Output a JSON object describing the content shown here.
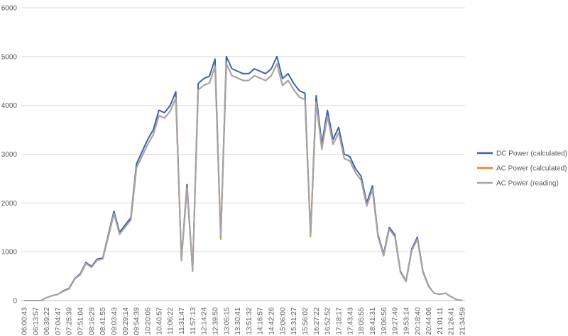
{
  "chart_data": {
    "type": "line",
    "categories": [
      "06:00:43",
      null,
      "06:13:57",
      null,
      "06:39:22",
      null,
      "07:04:47",
      null,
      "07:25:39",
      null,
      "07:51:04",
      null,
      "08:16:29",
      null,
      "08:41:55",
      null,
      "09:03:43",
      null,
      "09:29:14",
      null,
      "09:54:39",
      null,
      "10:20:05",
      null,
      "10:40:57",
      null,
      "11:06:22",
      null,
      "11:31:47",
      null,
      "11:57:13",
      null,
      "12:14:24",
      null,
      "12:39:50",
      null,
      "13:05:15",
      null,
      "13:30:41",
      null,
      "13:51:32",
      null,
      "14:16:57",
      null,
      "14:42:26",
      null,
      "15:06:00",
      null,
      "15:31:27",
      null,
      "15:56:02",
      null,
      "16:27:22",
      null,
      "16:52:52",
      null,
      "17:18:17",
      null,
      "17:43:43",
      null,
      "18:05:55",
      null,
      "18:41:31",
      null,
      "19:06:56",
      null,
      "19:27:49",
      null,
      "19:53:14",
      null,
      "20:18:40",
      null,
      "20:44:06",
      null,
      "21:01:11",
      null,
      "21:26:41",
      null,
      "21:34:59"
    ],
    "series": [
      {
        "name": "DC Power (calculated)",
        "color": "#3a64ad",
        "values": [
          0,
          0,
          0,
          0,
          60,
          100,
          130,
          200,
          250,
          450,
          550,
          780,
          700,
          850,
          870,
          1350,
          1830,
          1400,
          1550,
          1700,
          2800,
          3050,
          3300,
          3500,
          3900,
          3850,
          4000,
          4280,
          850,
          2380,
          620,
          4450,
          4550,
          4600,
          4950,
          1300,
          5000,
          4750,
          4700,
          4650,
          4650,
          4750,
          4700,
          4650,
          4750,
          5000,
          4550,
          4650,
          4450,
          4300,
          4250,
          1350,
          4200,
          3200,
          3900,
          3300,
          3550,
          3000,
          2950,
          2700,
          2550,
          2000,
          2350,
          1350,
          950,
          1500,
          1350,
          600,
          400,
          1050,
          1300,
          600,
          300,
          150,
          130,
          150,
          80,
          20,
          0
        ]
      },
      {
        "name": "AC Power (calculated)",
        "color": "#ed7d31",
        "values": [
          0,
          0,
          0,
          0,
          60,
          100,
          130,
          190,
          240,
          440,
          530,
          760,
          680,
          830,
          850,
          1310,
          1780,
          1360,
          1510,
          1650,
          2720,
          2960,
          3200,
          3400,
          3790,
          3740,
          3880,
          4150,
          820,
          2310,
          600,
          4320,
          4410,
          4460,
          4800,
          1260,
          4850,
          4610,
          4560,
          4510,
          4510,
          4610,
          4560,
          4510,
          4610,
          4850,
          4410,
          4510,
          4320,
          4170,
          4120,
          1310,
          4070,
          3100,
          3780,
          3200,
          3440,
          2910,
          2860,
          2620,
          2470,
          1940,
          2280,
          1310,
          920,
          1460,
          1310,
          580,
          390,
          1020,
          1260,
          580,
          290,
          150,
          130,
          150,
          80,
          20,
          0
        ]
      },
      {
        "name": "AC Power (reading)",
        "color": "#a5a5a5",
        "values": [
          0,
          0,
          0,
          0,
          60,
          100,
          130,
          190,
          240,
          440,
          530,
          760,
          680,
          830,
          850,
          1310,
          1780,
          1360,
          1510,
          1650,
          2720,
          2960,
          3200,
          3400,
          3790,
          3740,
          3880,
          4150,
          830,
          2310,
          600,
          4320,
          4410,
          4460,
          4800,
          1290,
          4850,
          4610,
          4560,
          4510,
          4510,
          4610,
          4560,
          4510,
          4610,
          4850,
          4410,
          4510,
          4320,
          4170,
          4120,
          1340,
          4070,
          3100,
          3780,
          3200,
          3440,
          2910,
          2860,
          2620,
          2470,
          1940,
          2280,
          1310,
          920,
          1460,
          1310,
          580,
          390,
          1020,
          1260,
          580,
          290,
          150,
          130,
          150,
          80,
          20,
          0
        ]
      }
    ],
    "ylim": [
      0,
      6000
    ],
    "yticks": [
      0,
      1000,
      2000,
      3000,
      4000,
      5000,
      6000
    ],
    "grid": true,
    "legend": "right"
  }
}
